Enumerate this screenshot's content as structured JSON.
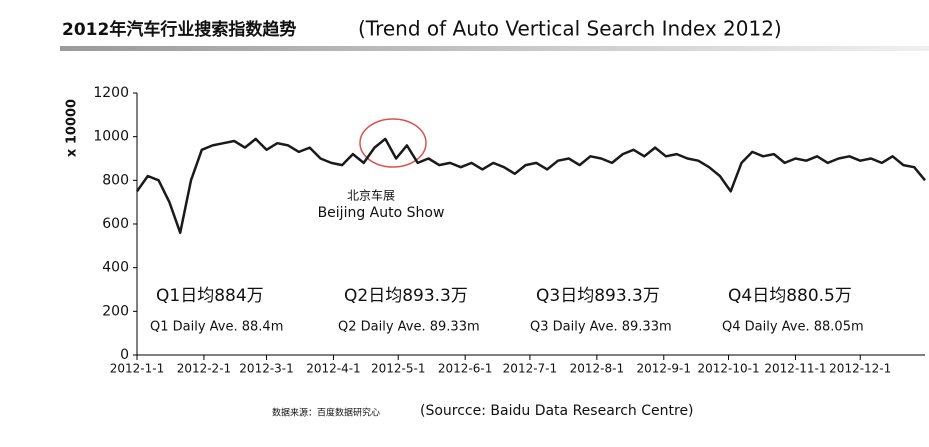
{
  "chart_data": {
    "type": "line",
    "title": "2012年汽车行业搜索指数趋势",
    "subtitle": "(Trend of Auto Vertical Search Index 2012)",
    "y_label": "x 10000",
    "x": [
      "2012-1-1",
      "2012-1-6",
      "2012-1-11",
      "2012-1-16",
      "2012-1-21",
      "2012-1-26",
      "2012-1-31",
      "2012-2-5",
      "2012-2-10",
      "2012-2-15",
      "2012-2-20",
      "2012-2-25",
      "2012-3-1",
      "2012-3-6",
      "2012-3-11",
      "2012-3-16",
      "2012-3-21",
      "2012-3-26",
      "2012-3-31",
      "2012-4-5",
      "2012-4-10",
      "2012-4-15",
      "2012-4-20",
      "2012-4-25",
      "2012-4-30",
      "2012-5-5",
      "2012-5-10",
      "2012-5-15",
      "2012-5-20",
      "2012-5-25",
      "2012-5-30",
      "2012-6-4",
      "2012-6-9",
      "2012-6-14",
      "2012-6-19",
      "2012-6-24",
      "2012-6-29",
      "2012-7-4",
      "2012-7-9",
      "2012-7-14",
      "2012-7-19",
      "2012-7-24",
      "2012-7-29",
      "2012-8-3",
      "2012-8-8",
      "2012-8-13",
      "2012-8-18",
      "2012-8-23",
      "2012-8-28",
      "2012-9-2",
      "2012-9-7",
      "2012-9-12",
      "2012-9-17",
      "2012-9-22",
      "2012-9-27",
      "2012-10-2",
      "2012-10-7",
      "2012-10-12",
      "2012-10-17",
      "2012-10-22",
      "2012-10-27",
      "2012-11-1",
      "2012-11-6",
      "2012-11-11",
      "2012-11-16",
      "2012-11-21",
      "2012-11-26",
      "2012-12-1",
      "2012-12-6",
      "2012-12-11",
      "2012-12-16",
      "2012-12-21",
      "2012-12-26",
      "2012-12-31"
    ],
    "series": [
      {
        "name": "Search Index",
        "color": "#1a1a1a",
        "values": [
          750,
          820,
          800,
          700,
          560,
          800,
          940,
          960,
          970,
          980,
          950,
          990,
          940,
          970,
          960,
          930,
          950,
          900,
          880,
          870,
          920,
          880,
          950,
          990,
          900,
          960,
          880,
          900,
          870,
          880,
          860,
          880,
          850,
          880,
          860,
          830,
          870,
          880,
          850,
          890,
          900,
          870,
          910,
          900,
          880,
          920,
          940,
          910,
          950,
          910,
          920,
          900,
          890,
          860,
          820,
          750,
          880,
          930,
          910,
          920,
          880,
          900,
          890,
          910,
          880,
          900,
          910,
          890,
          900,
          880,
          910,
          870,
          860,
          800
        ]
      }
    ],
    "xlim": [
      "2012-1-1",
      "2012-12-31"
    ],
    "xticks": [
      "2012-1-1",
      "2012-2-1",
      "2012-3-1",
      "2012-4-1",
      "2012-5-1",
      "2012-6-1",
      "2012-7-1",
      "2012-8-1",
      "2012-9-1",
      "2012-10-1",
      "2012-11-1",
      "2012-12-1"
    ],
    "ylim": [
      0,
      1200
    ],
    "yticks": [
      0,
      200,
      400,
      600,
      800,
      1000,
      1200
    ],
    "annotation": {
      "cn": "北京车展",
      "en": "Beijing Auto Show"
    },
    "quarters": [
      {
        "cn": "Q1日均884万",
        "en": "Q1 Daily Ave. 88.4m"
      },
      {
        "cn": "Q2日均893.3万",
        "en": "Q2 Daily Ave. 89.33m"
      },
      {
        "cn": "Q3日均893.3万",
        "en": "Q3 Daily Ave. 89.33m"
      },
      {
        "cn": "Q4日均880.5万",
        "en": "Q4 Daily Ave. 88.05m"
      }
    ],
    "source_cn": "数据来源：百度数据研究心",
    "source_en": "(Sourcce: Baidu Data Research Centre)"
  }
}
